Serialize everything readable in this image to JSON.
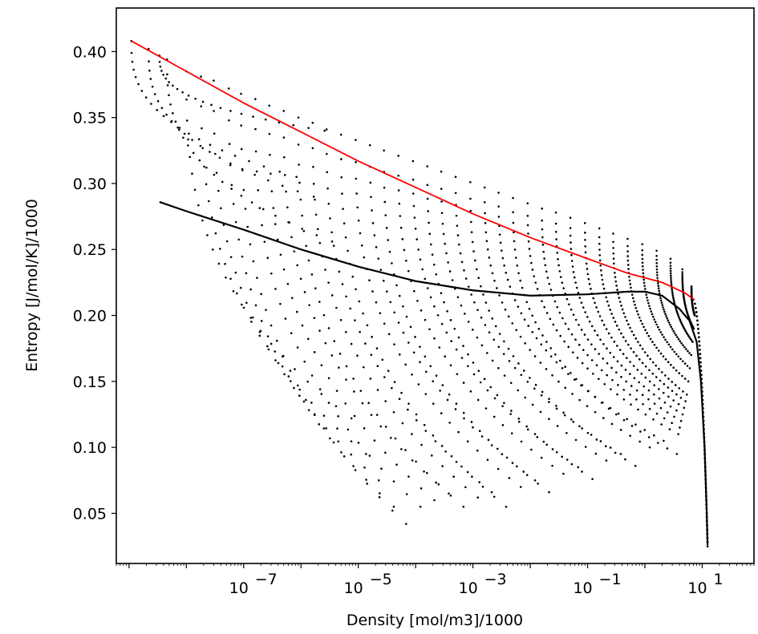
{
  "chart_data": {
    "type": "scatter",
    "title": "",
    "xlabel": "Density [mol/m3]/1000",
    "ylabel": "Entropy [J/mol/K]/1000",
    "x_scale": "log",
    "xlim": [
      6e-10,
      80
    ],
    "ylim": [
      0.012,
      0.433
    ],
    "grid": false,
    "legend": "none",
    "x_ticks": [
      {
        "value": 1e-07,
        "base": "10",
        "exp": "−7"
      },
      {
        "value": 1e-05,
        "base": "10",
        "exp": "−5"
      },
      {
        "value": 0.001,
        "base": "10",
        "exp": "−3"
      },
      {
        "value": 0.1,
        "base": "10",
        "exp": "−1"
      },
      {
        "value": 10,
        "base": "10",
        "exp": "1"
      }
    ],
    "y_ticks": [
      {
        "value": 0.05,
        "label": "0.05"
      },
      {
        "value": 0.1,
        "label": "0.10"
      },
      {
        "value": 0.15,
        "label": "0.15"
      },
      {
        "value": 0.2,
        "label": "0.20"
      },
      {
        "value": 0.25,
        "label": "0.25"
      },
      {
        "value": 0.3,
        "label": "0.30"
      },
      {
        "value": 0.35,
        "label": "0.35"
      },
      {
        "value": 0.4,
        "label": "0.40"
      }
    ],
    "series": [
      {
        "kind": "line",
        "color": "#ff0000",
        "points": [
          [
            1.1e-09,
            0.408
          ],
          [
            1e-08,
            0.385
          ],
          [
            1e-07,
            0.361
          ],
          [
            1e-06,
            0.339
          ],
          [
            1e-05,
            0.317
          ],
          [
            0.0001,
            0.297
          ],
          [
            0.001,
            0.277
          ],
          [
            0.01,
            0.259
          ],
          [
            0.1,
            0.243
          ],
          [
            0.5,
            0.232
          ],
          [
            2,
            0.225
          ],
          [
            5,
            0.217
          ],
          [
            7.2,
            0.212
          ]
        ]
      },
      {
        "kind": "line",
        "color": "#000000",
        "points": [
          [
            3.4e-09,
            0.286
          ],
          [
            1e-08,
            0.279
          ],
          [
            1e-07,
            0.265
          ],
          [
            1e-06,
            0.25
          ],
          [
            1e-05,
            0.237
          ],
          [
            0.0001,
            0.226
          ],
          [
            0.001,
            0.219
          ],
          [
            0.01,
            0.215
          ],
          [
            0.1,
            0.216
          ],
          [
            0.5,
            0.218
          ],
          [
            1,
            0.218
          ],
          [
            2,
            0.215
          ],
          [
            4,
            0.205
          ],
          [
            6,
            0.196
          ],
          [
            8,
            0.18
          ],
          [
            9.5,
            0.15
          ],
          [
            11,
            0.1
          ],
          [
            12,
            0.05
          ],
          [
            12.4,
            0.026
          ]
        ]
      },
      {
        "kind": "points",
        "color": "#000000",
        "isotherms": [
          {
            "x0": 1.1e-09,
            "top": 0.408,
            "bottom": 0.305
          },
          {
            "x0": 2.2e-09,
            "top": 0.402,
            "bottom": 0.29
          },
          {
            "x0": 3.4e-09,
            "top": 0.397,
            "bottom": 0.34
          },
          {
            "x0": 4.6e-09,
            "top": 0.394,
            "bottom": 0.256
          },
          {
            "x0": 1e-08,
            "top": 0.385,
            "bottom": 0.122
          },
          {
            "x0": 1.8e-08,
            "top": 0.381,
            "bottom": 0.095
          },
          {
            "x0": 3e-08,
            "top": 0.378,
            "bottom": 0.075
          },
          {
            "x0": 5.5e-08,
            "top": 0.372,
            "bottom": 0.055
          },
          {
            "x0": 9e-08,
            "top": 0.368,
            "bottom": 0.042
          },
          {
            "x0": 1.6e-07,
            "top": 0.364,
            "bottom": 0.055
          },
          {
            "x0": 2.8e-07,
            "top": 0.359,
            "bottom": 0.06
          },
          {
            "x0": 5e-07,
            "top": 0.355,
            "bottom": 0.065
          },
          {
            "x0": 9e-07,
            "top": 0.35,
            "bottom": 0.055
          },
          {
            "x0": 1.6e-06,
            "top": 0.346,
            "bottom": 0.062
          },
          {
            "x0": 2.8e-06,
            "top": 0.341,
            "bottom": 0.066
          },
          {
            "x0": 5e-06,
            "top": 0.337,
            "bottom": 0.055
          },
          {
            "x0": 9e-06,
            "top": 0.333,
            "bottom": 0.07
          },
          {
            "x0": 1.6e-05,
            "top": 0.329,
            "bottom": 0.075
          },
          {
            "x0": 2.8e-05,
            "top": 0.325,
            "bottom": 0.066
          },
          {
            "x0": 5e-05,
            "top": 0.321,
            "bottom": 0.08
          },
          {
            "x0": 9e-05,
            "top": 0.317,
            "bottom": 0.085
          },
          {
            "x0": 0.00016,
            "top": 0.313,
            "bottom": 0.076
          },
          {
            "x0": 0.00028,
            "top": 0.309,
            "bottom": 0.09
          },
          {
            "x0": 0.0005,
            "top": 0.305,
            "bottom": 0.095
          },
          {
            "x0": 0.0009,
            "top": 0.301,
            "bottom": 0.086
          },
          {
            "x0": 0.0016,
            "top": 0.297,
            "bottom": 0.1
          },
          {
            "x0": 0.0028,
            "top": 0.293,
            "bottom": 0.105
          },
          {
            "x0": 0.005,
            "top": 0.289,
            "bottom": 0.095
          },
          {
            "x0": 0.009,
            "top": 0.285,
            "bottom": 0.11
          },
          {
            "x0": 0.016,
            "top": 0.281,
            "bottom": 0.115
          },
          {
            "x0": 0.028,
            "top": 0.278,
            "bottom": 0.12
          },
          {
            "x0": 0.05,
            "top": 0.274,
            "bottom": 0.125
          },
          {
            "x0": 0.09,
            "top": 0.27,
            "bottom": 0.13
          },
          {
            "x0": 0.16,
            "top": 0.266,
            "bottom": 0.135
          },
          {
            "x0": 0.28,
            "top": 0.262,
            "bottom": 0.14
          },
          {
            "x0": 0.5,
            "top": 0.258,
            "bottom": 0.15
          },
          {
            "x0": 0.9,
            "top": 0.254,
            "bottom": 0.16
          },
          {
            "x0": 1.6,
            "top": 0.249,
            "bottom": 0.17
          },
          {
            "x0": 2.8,
            "top": 0.243,
            "bottom": 0.18
          },
          {
            "x0": 4.5,
            "top": 0.235,
            "bottom": 0.19
          },
          {
            "x0": 6.5,
            "top": 0.222,
            "bottom": 0.2
          }
        ]
      }
    ]
  }
}
